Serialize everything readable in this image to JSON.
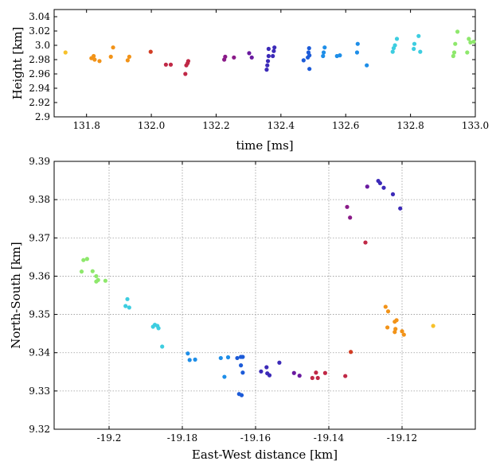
{
  "chart_data": [
    {
      "type": "scatter",
      "xlabel": "time [ms]",
      "ylabel": "Height [km]",
      "xlim": [
        131.7,
        133.0
      ],
      "ylim": [
        2.9,
        3.05
      ],
      "grid": false,
      "xticks": [
        131.8,
        132.0,
        132.2,
        132.4,
        132.6,
        132.8,
        133.0
      ],
      "xtick_labels": [
        "131.8",
        "132.0",
        "132.2",
        "132.4",
        "132.6",
        "132.8",
        "133.0"
      ],
      "yticks": [
        2.9,
        2.92,
        2.94,
        2.96,
        2.98,
        3.0,
        3.02,
        3.04
      ],
      "ytick_labels": [
        "2.9",
        "2.92",
        "2.94",
        "2.96",
        "2.98",
        "3.0",
        "3.02",
        "3.04"
      ],
      "points": [
        {
          "x": 131.735,
          "y": 2.99,
          "color": "#f7c12a"
        },
        {
          "x": 131.815,
          "y": 2.982,
          "color": "#f29318"
        },
        {
          "x": 131.822,
          "y": 2.985,
          "color": "#f29318"
        },
        {
          "x": 131.825,
          "y": 2.98,
          "color": "#f29318"
        },
        {
          "x": 131.84,
          "y": 2.978,
          "color": "#f29318"
        },
        {
          "x": 131.875,
          "y": 2.984,
          "color": "#f29318"
        },
        {
          "x": 131.882,
          "y": 2.997,
          "color": "#f29318"
        },
        {
          "x": 131.927,
          "y": 2.979,
          "color": "#f29318"
        },
        {
          "x": 131.932,
          "y": 2.984,
          "color": "#f29318"
        },
        {
          "x": 131.998,
          "y": 2.991,
          "color": "#d23d24"
        },
        {
          "x": 132.045,
          "y": 2.973,
          "color": "#c02846"
        },
        {
          "x": 132.06,
          "y": 2.973,
          "color": "#c02846"
        },
        {
          "x": 132.105,
          "y": 2.96,
          "color": "#c02846"
        },
        {
          "x": 132.108,
          "y": 2.972,
          "color": "#c02846"
        },
        {
          "x": 132.112,
          "y": 2.975,
          "color": "#c02846"
        },
        {
          "x": 132.114,
          "y": 2.978,
          "color": "#c02846"
        },
        {
          "x": 132.225,
          "y": 2.98,
          "color": "#8a1a88"
        },
        {
          "x": 132.228,
          "y": 2.984,
          "color": "#8a1a88"
        },
        {
          "x": 132.255,
          "y": 2.983,
          "color": "#8a1a88"
        },
        {
          "x": 132.302,
          "y": 2.989,
          "color": "#6a1aa0"
        },
        {
          "x": 132.31,
          "y": 2.983,
          "color": "#6a1aa0"
        },
        {
          "x": 132.356,
          "y": 2.966,
          "color": "#3c2ab8"
        },
        {
          "x": 132.358,
          "y": 2.972,
          "color": "#3c2ab8"
        },
        {
          "x": 132.36,
          "y": 2.978,
          "color": "#3c2ab8"
        },
        {
          "x": 132.362,
          "y": 2.985,
          "color": "#3c2ab8"
        },
        {
          "x": 132.362,
          "y": 2.995,
          "color": "#3c2ab8"
        },
        {
          "x": 132.375,
          "y": 2.985,
          "color": "#3c2ab8"
        },
        {
          "x": 132.378,
          "y": 2.992,
          "color": "#3c2ab8"
        },
        {
          "x": 132.38,
          "y": 2.997,
          "color": "#3c2ab8"
        },
        {
          "x": 132.47,
          "y": 2.979,
          "color": "#1c5bd8"
        },
        {
          "x": 132.483,
          "y": 2.983,
          "color": "#1c5bd8"
        },
        {
          "x": 132.485,
          "y": 2.99,
          "color": "#1c5bd8"
        },
        {
          "x": 132.487,
          "y": 2.996,
          "color": "#1c5bd8"
        },
        {
          "x": 132.488,
          "y": 2.967,
          "color": "#1c5bd8"
        },
        {
          "x": 132.488,
          "y": 2.986,
          "color": "#1c5bd8"
        },
        {
          "x": 132.53,
          "y": 2.985,
          "color": "#1e8ee8"
        },
        {
          "x": 132.532,
          "y": 2.99,
          "color": "#1e8ee8"
        },
        {
          "x": 132.535,
          "y": 2.997,
          "color": "#1e8ee8"
        },
        {
          "x": 132.573,
          "y": 2.985,
          "color": "#1e8ee8"
        },
        {
          "x": 132.582,
          "y": 2.986,
          "color": "#1e8ee8"
        },
        {
          "x": 132.635,
          "y": 2.99,
          "color": "#1e8ee8"
        },
        {
          "x": 132.637,
          "y": 3.002,
          "color": "#1e8ee8"
        },
        {
          "x": 132.665,
          "y": 2.972,
          "color": "#1e8ee8"
        },
        {
          "x": 132.745,
          "y": 2.991,
          "color": "#3dcde0"
        },
        {
          "x": 132.748,
          "y": 2.996,
          "color": "#3dcde0"
        },
        {
          "x": 132.752,
          "y": 3.0,
          "color": "#3dcde0"
        },
        {
          "x": 132.758,
          "y": 3.009,
          "color": "#3dcde0"
        },
        {
          "x": 132.81,
          "y": 2.995,
          "color": "#3dcde0"
        },
        {
          "x": 132.812,
          "y": 3.002,
          "color": "#3dcde0"
        },
        {
          "x": 132.825,
          "y": 3.013,
          "color": "#3dcde0"
        },
        {
          "x": 132.83,
          "y": 2.991,
          "color": "#3dcde0"
        },
        {
          "x": 132.932,
          "y": 2.985,
          "color": "#8ee86c"
        },
        {
          "x": 132.935,
          "y": 2.99,
          "color": "#8ee86c"
        },
        {
          "x": 132.938,
          "y": 3.002,
          "color": "#8ee86c"
        },
        {
          "x": 132.945,
          "y": 3.019,
          "color": "#8ee86c"
        },
        {
          "x": 132.975,
          "y": 2.99,
          "color": "#8ee86c"
        },
        {
          "x": 132.98,
          "y": 3.009,
          "color": "#8ee86c"
        },
        {
          "x": 132.985,
          "y": 3.004,
          "color": "#8ee86c"
        },
        {
          "x": 132.995,
          "y": 3.005,
          "color": "#8ee86c"
        }
      ]
    },
    {
      "type": "scatter",
      "xlabel": "East-West distance [km]",
      "ylabel": "North-South [km]",
      "xlim": [
        -19.215,
        -19.1
      ],
      "ylim": [
        9.32,
        9.39
      ],
      "grid": true,
      "xticks": [
        -19.2,
        -19.18,
        -19.16,
        -19.14,
        -19.12
      ],
      "xtick_labels": [
        "-19.2",
        "-19.18",
        "-19.16",
        "-19.14",
        "-19.12"
      ],
      "yticks": [
        9.32,
        9.33,
        9.34,
        9.35,
        9.36,
        9.37,
        9.38,
        9.39
      ],
      "ytick_labels": [
        "9.32",
        "9.33",
        "9.34",
        "9.35",
        "9.36",
        "9.37",
        "9.38",
        "9.39"
      ],
      "points": [
        {
          "x": -19.2075,
          "y": 9.3612,
          "color": "#8ee86c"
        },
        {
          "x": -19.207,
          "y": 9.3642,
          "color": "#8ee86c"
        },
        {
          "x": -19.206,
          "y": 9.3645,
          "color": "#8ee86c"
        },
        {
          "x": -19.2045,
          "y": 9.3613,
          "color": "#8ee86c"
        },
        {
          "x": -19.2035,
          "y": 9.36,
          "color": "#8ee86c"
        },
        {
          "x": -19.203,
          "y": 9.359,
          "color": "#8ee86c"
        },
        {
          "x": -19.2035,
          "y": 9.3586,
          "color": "#8ee86c"
        },
        {
          "x": -19.201,
          "y": 9.3588,
          "color": "#8ee86c"
        },
        {
          "x": -19.195,
          "y": 9.354,
          "color": "#3dcde0"
        },
        {
          "x": -19.1955,
          "y": 9.3522,
          "color": "#3dcde0"
        },
        {
          "x": -19.1945,
          "y": 9.3518,
          "color": "#3dcde0"
        },
        {
          "x": -19.188,
          "y": 9.3468,
          "color": "#3dcde0"
        },
        {
          "x": -19.1875,
          "y": 9.3473,
          "color": "#3dcde0"
        },
        {
          "x": -19.1868,
          "y": 9.347,
          "color": "#3dcde0"
        },
        {
          "x": -19.1865,
          "y": 9.3464,
          "color": "#3dcde0"
        },
        {
          "x": -19.1855,
          "y": 9.3416,
          "color": "#3dcde0"
        },
        {
          "x": -19.1785,
          "y": 9.3398,
          "color": "#1e8ee8"
        },
        {
          "x": -19.178,
          "y": 9.3381,
          "color": "#1e8ee8"
        },
        {
          "x": -19.1765,
          "y": 9.3382,
          "color": "#1e8ee8"
        },
        {
          "x": -19.1695,
          "y": 9.3386,
          "color": "#1e8ee8"
        },
        {
          "x": -19.1685,
          "y": 9.3337,
          "color": "#1e8ee8"
        },
        {
          "x": -19.1675,
          "y": 9.3388,
          "color": "#1e8ee8"
        },
        {
          "x": -19.165,
          "y": 9.3386,
          "color": "#1c5bd8"
        },
        {
          "x": -19.164,
          "y": 9.3389,
          "color": "#1c5bd8"
        },
        {
          "x": -19.1635,
          "y": 9.3389,
          "color": "#1c5bd8"
        },
        {
          "x": -19.164,
          "y": 9.3367,
          "color": "#1c5bd8"
        },
        {
          "x": -19.1635,
          "y": 9.3348,
          "color": "#1c5bd8"
        },
        {
          "x": -19.1645,
          "y": 9.3292,
          "color": "#1c5bd8"
        },
        {
          "x": -19.1638,
          "y": 9.3289,
          "color": "#1c5bd8"
        },
        {
          "x": -19.1585,
          "y": 9.3351,
          "color": "#3c2ab8"
        },
        {
          "x": -19.157,
          "y": 9.3362,
          "color": "#3c2ab8"
        },
        {
          "x": -19.1568,
          "y": 9.3346,
          "color": "#3c2ab8"
        },
        {
          "x": -19.1562,
          "y": 9.3341,
          "color": "#3c2ab8"
        },
        {
          "x": -19.1535,
          "y": 9.3374,
          "color": "#3c2ab8"
        },
        {
          "x": -19.1495,
          "y": 9.3347,
          "color": "#6a1aa0"
        },
        {
          "x": -19.148,
          "y": 9.334,
          "color": "#6a1aa0"
        },
        {
          "x": -19.1445,
          "y": 9.3334,
          "color": "#c02846"
        },
        {
          "x": -19.1435,
          "y": 9.3348,
          "color": "#c02846"
        },
        {
          "x": -19.143,
          "y": 9.3334,
          "color": "#c02846"
        },
        {
          "x": -19.141,
          "y": 9.3347,
          "color": "#c02846"
        },
        {
          "x": -19.1355,
          "y": 9.3339,
          "color": "#c02846"
        },
        {
          "x": -19.134,
          "y": 9.3402,
          "color": "#d23d24"
        },
        {
          "x": -19.13,
          "y": 9.3688,
          "color": "#c02846"
        },
        {
          "x": -19.135,
          "y": 9.3781,
          "color": "#8a1a88"
        },
        {
          "x": -19.1342,
          "y": 9.3753,
          "color": "#8a1a88"
        },
        {
          "x": -19.1295,
          "y": 9.3834,
          "color": "#6a1aa0"
        },
        {
          "x": -19.1265,
          "y": 9.3849,
          "color": "#3c2ab8"
        },
        {
          "x": -19.126,
          "y": 9.3843,
          "color": "#3c2ab8"
        },
        {
          "x": -19.125,
          "y": 9.3831,
          "color": "#3c2ab8"
        },
        {
          "x": -19.1225,
          "y": 9.3814,
          "color": "#3c2ab8"
        },
        {
          "x": -19.1205,
          "y": 9.3777,
          "color": "#3c2ab8"
        },
        {
          "x": -19.1245,
          "y": 9.352,
          "color": "#f29318"
        },
        {
          "x": -19.1238,
          "y": 9.3508,
          "color": "#f29318"
        },
        {
          "x": -19.124,
          "y": 9.3466,
          "color": "#f29318"
        },
        {
          "x": -19.122,
          "y": 9.3481,
          "color": "#f29318"
        },
        {
          "x": -19.1215,
          "y": 9.3485,
          "color": "#f29318"
        },
        {
          "x": -19.1218,
          "y": 9.3462,
          "color": "#f29318"
        },
        {
          "x": -19.122,
          "y": 9.3454,
          "color": "#f29318"
        },
        {
          "x": -19.12,
          "y": 9.3456,
          "color": "#f29318"
        },
        {
          "x": -19.1195,
          "y": 9.3447,
          "color": "#f29318"
        },
        {
          "x": -19.1115,
          "y": 9.347,
          "color": "#f7c12a"
        }
      ]
    }
  ]
}
